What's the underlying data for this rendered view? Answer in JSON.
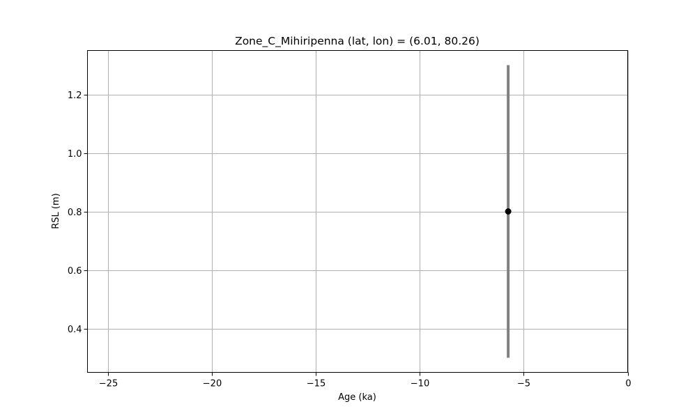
{
  "chart_data": {
    "type": "scatter",
    "title": "Zone_C_Mihiripenna (lat, lon) = (6.01, 80.26)",
    "xlabel": "Age (ka)",
    "ylabel": "RSL (m)",
    "xlim": [
      -26,
      0
    ],
    "ylim": [
      0.25,
      1.35
    ],
    "xticks": [
      -25,
      -20,
      -15,
      -10,
      -5,
      0
    ],
    "xtick_labels": [
      "−25",
      "−20",
      "−15",
      "−10",
      "−5",
      "0"
    ],
    "yticks": [
      0.4,
      0.6,
      0.8,
      1.0,
      1.2
    ],
    "ytick_labels": [
      "0.4",
      "0.6",
      "0.8",
      "1.0",
      "1.2"
    ],
    "grid": true,
    "points": [
      {
        "x": -5.75,
        "y": 0.8,
        "y_lower": 0.3,
        "y_upper": 1.3
      }
    ],
    "colors": {
      "marker": "#000000",
      "errorbar": "#808080",
      "grid": "#b0b0b0",
      "axes": "#000000"
    }
  }
}
